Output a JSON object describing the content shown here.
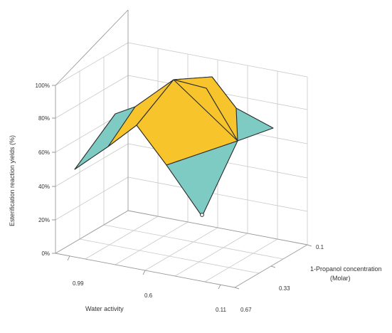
{
  "chart_data": {
    "type": "surface-3d",
    "zlabel": "Esterification reaction yields (%)",
    "xlabel": "Water activity",
    "ylabel_lines": [
      "1-Propanol concentration",
      "(Molar)"
    ],
    "z_ticks": [
      "0%",
      "20%",
      "40%",
      "60%",
      "80%",
      "100%"
    ],
    "x_tick_labels": [
      "0.99",
      "0.6",
      "0.11"
    ],
    "y_tick_labels": [
      "0.1",
      "0.33",
      "0.67"
    ],
    "x_values": [
      0.99,
      0.6,
      0.11
    ],
    "y_values": [
      0.1,
      0.33,
      0.67
    ],
    "zlim": [
      0,
      100
    ],
    "grid": true,
    "colors": {
      "above": "#f7c42c",
      "below": "#7ecbc4",
      "outline": "#2b2b2b"
    }
  }
}
